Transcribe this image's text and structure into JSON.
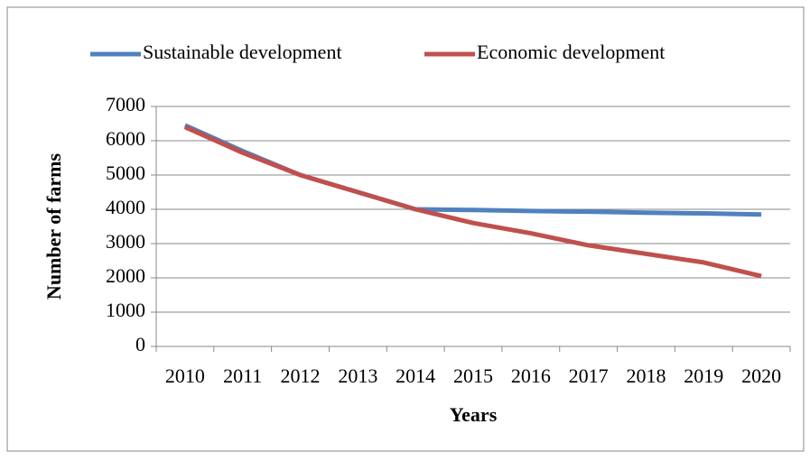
{
  "chart_data": {
    "type": "line",
    "x_label": "Years",
    "y_label": "Number of farms",
    "categories": [
      "2010",
      "2011",
      "2012",
      "2013",
      "2014",
      "2015",
      "2016",
      "2017",
      "2018",
      "2019",
      "2020"
    ],
    "series": [
      {
        "name": "Sustainable development",
        "color": "#4f81bd",
        "values": [
          6450,
          5700,
          5000,
          4500,
          4000,
          3980,
          3950,
          3930,
          3900,
          3880,
          3850
        ]
      },
      {
        "name": "Economic development",
        "color": "#c0504d",
        "values": [
          6400,
          5650,
          5000,
          4500,
          4000,
          3600,
          3300,
          2950,
          2700,
          2450,
          2050
        ]
      }
    ],
    "ylim": [
      0,
      7000
    ],
    "yticks": [
      0,
      1000,
      2000,
      3000,
      4000,
      5000,
      6000,
      7000
    ],
    "grid": true
  }
}
